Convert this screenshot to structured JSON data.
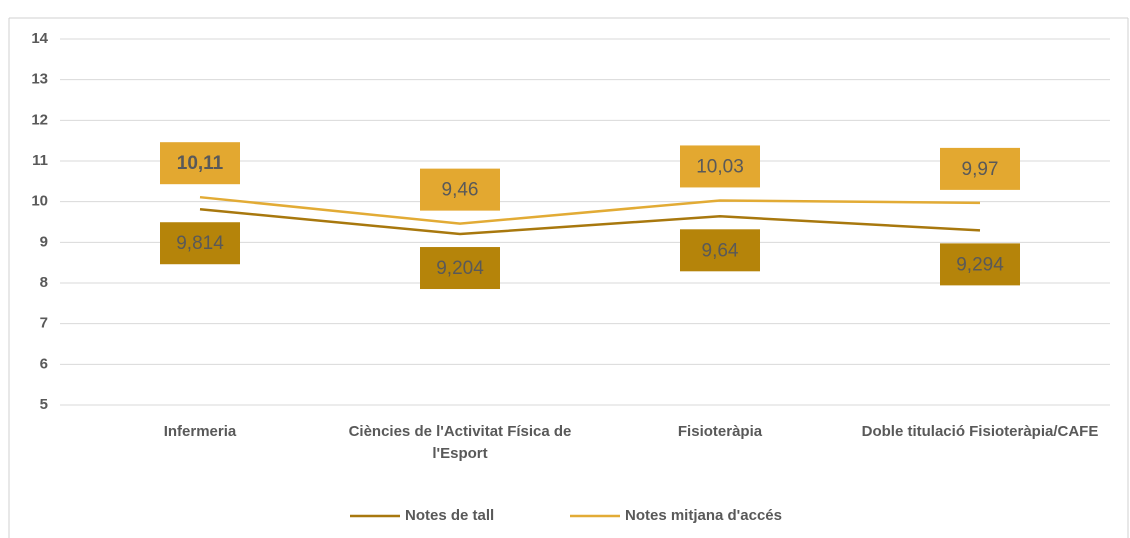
{
  "chart_data": {
    "type": "line",
    "categories": [
      "Infermeria",
      "Ciències de l'Activitat Física de l'Esport",
      "Fisioteràpia",
      "Doble titulació Fisioteràpia/CAFE"
    ],
    "series": [
      {
        "name": "Notes de tall",
        "color": "#a8780e",
        "label_color": "#b5840a",
        "values": [
          9.814,
          9.204,
          9.64,
          9.294
        ],
        "value_labels": [
          "9,814",
          "9,204",
          "9,64",
          "9,294"
        ]
      },
      {
        "name": "Notes mitjana d'accés",
        "color": "#e2ab35",
        "label_color": "#e3a830",
        "values": [
          10.11,
          9.46,
          10.03,
          9.97
        ],
        "value_labels": [
          "10,11",
          "9,46",
          "10,03",
          "9,97"
        ]
      }
    ],
    "ylim": [
      5,
      14
    ],
    "yticks": [
      5,
      6,
      7,
      8,
      9,
      10,
      11,
      12,
      13,
      14
    ],
    "grid": true,
    "legend": "bottom"
  }
}
